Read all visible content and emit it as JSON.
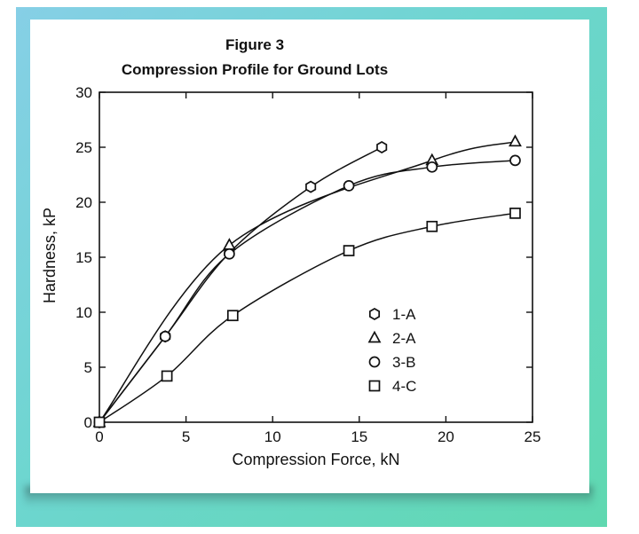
{
  "chart_data": {
    "type": "scatter",
    "title": "Figure 3",
    "subtitle": "Compression Profile for Ground Lots",
    "xlabel": "Compression Force, kN",
    "ylabel": "Hardness, kP",
    "xlim": [
      0,
      25
    ],
    "ylim": [
      0,
      30
    ],
    "xticks": [
      "0",
      "5",
      "10",
      "15",
      "20",
      "25"
    ],
    "yticks": [
      "0",
      "5",
      "10",
      "15",
      "20",
      "25",
      "30"
    ],
    "grid": false,
    "legend_position": "lower-right",
    "series": [
      {
        "name": "1-A",
        "marker": "hexagon",
        "x": [
          0,
          3.8,
          7.5,
          12.2,
          16.3
        ],
        "y": [
          0,
          7.8,
          15.4,
          21.4,
          25.0
        ]
      },
      {
        "name": "2-A",
        "marker": "triangle",
        "x": [
          0,
          7.5,
          19.2,
          24.0
        ],
        "y": [
          0,
          16.1,
          23.8,
          25.5
        ]
      },
      {
        "name": "3-B",
        "marker": "circle",
        "x": [
          0,
          3.8,
          7.5,
          14.4,
          19.2,
          24.0
        ],
        "y": [
          0,
          7.8,
          15.3,
          21.5,
          23.2,
          23.8
        ]
      },
      {
        "name": "4-C",
        "marker": "square",
        "x": [
          0,
          3.9,
          7.7,
          14.4,
          19.2,
          24.0
        ],
        "y": [
          0,
          4.2,
          9.7,
          15.6,
          17.8,
          19.0
        ]
      }
    ]
  }
}
